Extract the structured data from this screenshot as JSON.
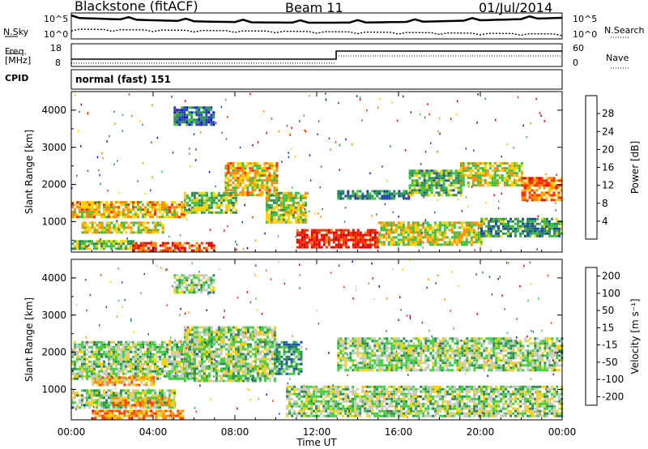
{
  "header": {
    "station": "Blackstone (fitACF)",
    "beam": "Beam 11",
    "date": "01/Jul/2014"
  },
  "top_panels": {
    "nsky_label": "N.Sky",
    "nsearch_label": "N.Search",
    "noise_ticks": [
      "10^5",
      "10^0"
    ],
    "freq_label_line1": "Freq.",
    "freq_label_line2": "[MHz]",
    "freq_ticks": [
      "18",
      "8"
    ],
    "nave_label": "Nave",
    "nave_ticks": [
      "60",
      "0"
    ],
    "cpid_label": "CPID",
    "cpid_value": "normal (fast) 151"
  },
  "chart_data": [
    {
      "type": "heatmap",
      "title": "",
      "xlabel": "Time UT",
      "ylabel": "Slant Range [km]",
      "x_tick_labels": [
        "00:00",
        "04:00",
        "08:00",
        "12:00",
        "16:00",
        "20:00",
        "00:00"
      ],
      "x_range_hours": [
        0,
        24
      ],
      "y_tick_labels": [
        "1000",
        "2000",
        "3000",
        "4000"
      ],
      "y_range_km": [
        180,
        4500
      ],
      "colorbar": {
        "label": "Power [dB]",
        "ticks": [
          "4",
          "8",
          "12",
          "16",
          "20",
          "24",
          "28"
        ],
        "colors": [
          "#1010e0",
          "#2244b0",
          "#2e8b57",
          "#3fbf3f",
          "#ffd000",
          "#ff8c00",
          "#ff3000",
          "#e00000"
        ]
      },
      "regions": [
        {
          "t0": 0.0,
          "t1": 5.5,
          "r0": 1100,
          "r1": 1550,
          "level": 0.62
        },
        {
          "t0": 0.5,
          "t1": 4.5,
          "r0": 700,
          "r1": 1000,
          "level": 0.55
        },
        {
          "t0": 0.0,
          "t1": 3.0,
          "r0": 250,
          "r1": 500,
          "level": 0.45
        },
        {
          "t0": 3.0,
          "t1": 7.0,
          "r0": 250,
          "r1": 450,
          "level": 0.8
        },
        {
          "t0": 5.5,
          "t1": 8.0,
          "r0": 1250,
          "r1": 1800,
          "level": 0.45
        },
        {
          "t0": 7.5,
          "t1": 10.0,
          "r0": 1700,
          "r1": 2600,
          "level": 0.6
        },
        {
          "t0": 9.5,
          "t1": 11.5,
          "r0": 1000,
          "r1": 1800,
          "level": 0.5
        },
        {
          "t0": 5.0,
          "t1": 7.0,
          "r0": 3600,
          "r1": 4100,
          "level": 0.25
        },
        {
          "t0": 11.0,
          "t1": 15.0,
          "r0": 300,
          "r1": 800,
          "level": 0.9
        },
        {
          "t0": 15.0,
          "t1": 20.0,
          "r0": 400,
          "r1": 1000,
          "level": 0.55
        },
        {
          "t0": 20.0,
          "t1": 24.0,
          "r0": 600,
          "r1": 1100,
          "level": 0.35
        },
        {
          "t0": 13.0,
          "t1": 16.5,
          "r0": 1600,
          "r1": 1850,
          "level": 0.3
        },
        {
          "t0": 16.5,
          "t1": 19.0,
          "r0": 1700,
          "r1": 2400,
          "level": 0.4
        },
        {
          "t0": 19.0,
          "t1": 22.0,
          "r0": 2000,
          "r1": 2600,
          "level": 0.55
        },
        {
          "t0": 22.0,
          "t1": 24.0,
          "r0": 1600,
          "r1": 2200,
          "level": 0.72
        }
      ]
    },
    {
      "type": "heatmap",
      "title": "",
      "xlabel": "Time UT",
      "ylabel": "Slant Range [km]",
      "x_tick_labels": [
        "00:00",
        "04:00",
        "08:00",
        "12:00",
        "16:00",
        "20:00",
        "00:00"
      ],
      "x_range_hours": [
        0,
        24
      ],
      "y_tick_labels": [
        "1000",
        "2000",
        "3000",
        "4000"
      ],
      "y_range_km": [
        180,
        4500
      ],
      "colorbar": {
        "label": "Velocity [m s⁻¹]",
        "ticks": [
          "200",
          "100",
          "50",
          "15",
          "-15",
          "-50",
          "-100",
          "-200"
        ],
        "colors": [
          "#1010c0",
          "#2255aa",
          "#2e8b57",
          "#44cc44",
          "#c8c8c0",
          "#ffd000",
          "#ff8c00",
          "#ff4000",
          "#e00000"
        ]
      },
      "regions": [
        {
          "t0": 0.0,
          "t1": 6.0,
          "r0": 1300,
          "r1": 2300,
          "level": 0.45
        },
        {
          "t0": 0.0,
          "t1": 5.0,
          "r0": 500,
          "r1": 1000,
          "level": 0.45
        },
        {
          "t0": 1.0,
          "t1": 4.0,
          "r0": 1150,
          "r1": 1350,
          "level": 0.65
        },
        {
          "t0": 2.0,
          "t1": 5.0,
          "r0": 600,
          "r1": 800,
          "level": 0.7
        },
        {
          "t0": 1.0,
          "t1": 5.5,
          "r0": 250,
          "r1": 450,
          "level": 0.72
        },
        {
          "t0": 5.5,
          "t1": 10.0,
          "r0": 1200,
          "r1": 2700,
          "level": 0.45
        },
        {
          "t0": 10.0,
          "t1": 11.2,
          "r0": 1400,
          "r1": 2300,
          "level": 0.3
        },
        {
          "t0": 5.0,
          "t1": 7.0,
          "r0": 3600,
          "r1": 4100,
          "level": 0.45
        },
        {
          "t0": 10.5,
          "t1": 24.0,
          "r0": 300,
          "r1": 1100,
          "level": 0.45
        },
        {
          "t0": 13.0,
          "t1": 24.0,
          "r0": 1500,
          "r1": 2400,
          "level": 0.45
        }
      ]
    }
  ]
}
